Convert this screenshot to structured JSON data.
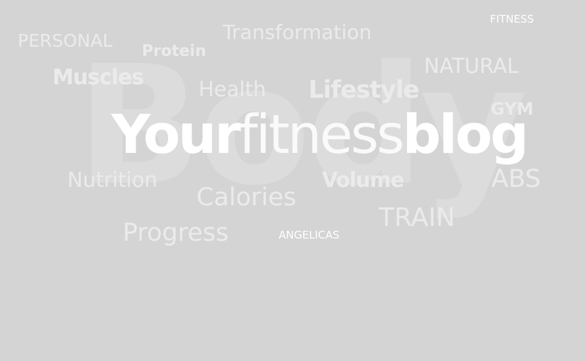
{
  "background_word": "Body",
  "headline": {
    "part1": "Your",
    "part2": "fitness",
    "part3": "blog"
  },
  "words": {
    "personal": "PERSONAL",
    "transformation": "Transformation",
    "fitness": "FITNESS",
    "protein": "Protein",
    "natural": "NATURAL",
    "muscles": "Muscles",
    "health": "Health",
    "lifestyle": "Lifestyle",
    "gym": "GYM",
    "nutrition": "Nutrition",
    "volume": "Volume",
    "abs": "ABS",
    "calories": "Calories",
    "train": "TRAIN",
    "progress": "Progress",
    "angelicas": "ANGELICAS"
  },
  "colors": {
    "background": "#d4d4d4",
    "word": "#ebebeb",
    "headline": "#ffffff"
  }
}
